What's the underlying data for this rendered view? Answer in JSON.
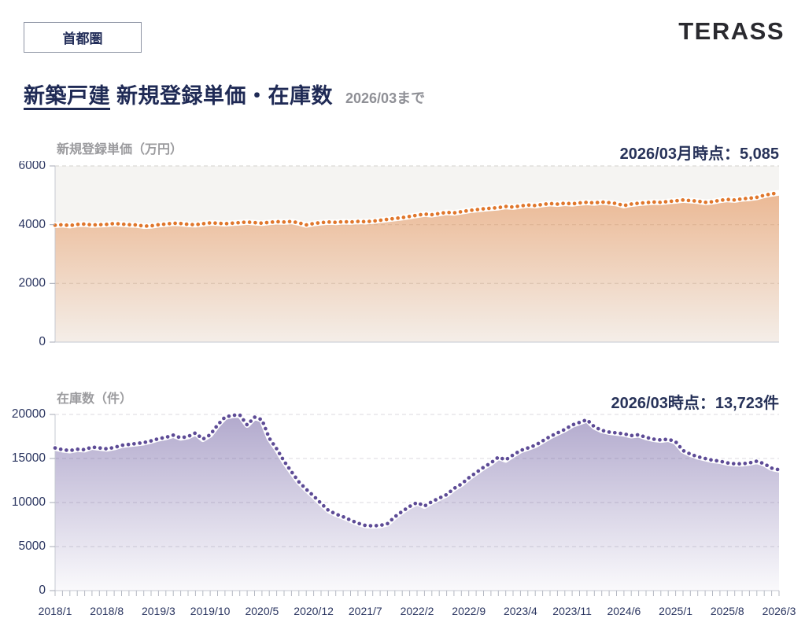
{
  "header": {
    "region_badge": "首都圏",
    "logo": "TERASS",
    "title_highlight": "新築戸建",
    "title_rest": " 新規登録単価・在庫数",
    "subtitle": "2026/03まで"
  },
  "colors": {
    "navy_text": "#273259",
    "gray_label": "#9b9b9e",
    "price_orange": "#e0762b",
    "inventory_purple": "#5d4b96"
  },
  "chart_data": [
    {
      "type": "area",
      "id": "price",
      "title": "新規登録単価（万円）",
      "annotation": "2026/03月時点：5,085",
      "latest": {
        "x": "2026/03",
        "y": 5085
      },
      "x_start": "2018/1",
      "x_end": "2026/3",
      "x_interval": "monthly",
      "x_tick_labels": [
        "2018/1",
        "2018/8",
        "2019/3",
        "2019/10",
        "2020/5",
        "2020/12",
        "2021/7",
        "2022/2",
        "2022/9",
        "2023/4",
        "2023/11",
        "2024/6",
        "2025/1",
        "2025/8",
        "2026/3"
      ],
      "ylim": [
        0,
        6000
      ],
      "y_ticks": [
        0,
        2000,
        4000,
        6000
      ],
      "grid": "dashed-horizontal",
      "legend": "none",
      "line_color": "#e0762b",
      "fill_color": "#e0762b",
      "fill_opacity_top": 0.55,
      "fill_opacity_bottom": 0.05,
      "plot_bg": "#f5f4f2",
      "grid_color": "#dcdad6",
      "values": [
        3980,
        4000,
        3970,
        4010,
        4020,
        3990,
        4000,
        4010,
        4040,
        4020,
        4000,
        3990,
        3950,
        3960,
        4000,
        4020,
        4050,
        4040,
        4010,
        4000,
        4030,
        4060,
        4050,
        4030,
        4050,
        4070,
        4090,
        4070,
        4050,
        4080,
        4100,
        4090,
        4110,
        4060,
        3990,
        4040,
        4070,
        4090,
        4080,
        4100,
        4090,
        4110,
        4100,
        4120,
        4150,
        4180,
        4210,
        4240,
        4280,
        4320,
        4360,
        4340,
        4380,
        4420,
        4400,
        4440,
        4480,
        4510,
        4540,
        4560,
        4580,
        4620,
        4600,
        4640,
        4670,
        4650,
        4690,
        4720,
        4700,
        4730,
        4710,
        4740,
        4760,
        4740,
        4770,
        4750,
        4720,
        4650,
        4700,
        4730,
        4750,
        4770,
        4760,
        4790,
        4810,
        4840,
        4820,
        4800,
        4760,
        4780,
        4830,
        4860,
        4840,
        4880,
        4900,
        4930,
        5000,
        5050,
        5085
      ]
    },
    {
      "type": "area",
      "id": "inventory",
      "title": "在庫数（件）",
      "annotation": "2026/03時点：13,723件",
      "latest": {
        "x": "2026/03",
        "y": 13723
      },
      "x_start": "2018/1",
      "x_end": "2026/3",
      "x_interval": "monthly",
      "x_tick_labels": [
        "2018/1",
        "2018/8",
        "2019/3",
        "2019/10",
        "2020/5",
        "2020/12",
        "2021/7",
        "2022/2",
        "2022/9",
        "2023/4",
        "2023/11",
        "2024/6",
        "2025/1",
        "2025/8",
        "2026/3"
      ],
      "ylim": [
        0,
        20000
      ],
      "y_ticks": [
        0,
        5000,
        10000,
        15000,
        20000
      ],
      "grid": "dashed-horizontal",
      "legend": "none",
      "line_color": "#5d4b96",
      "fill_color": "#5d4b96",
      "fill_opacity_top": 0.48,
      "fill_opacity_bottom": 0.03,
      "plot_bg": "#ffffff",
      "grid_color": "#e2e0e5",
      "values": [
        16200,
        16000,
        15900,
        16050,
        16000,
        16300,
        16200,
        16100,
        16250,
        16500,
        16600,
        16700,
        16800,
        17000,
        17250,
        17400,
        17650,
        17350,
        17500,
        17900,
        17200,
        17700,
        18800,
        19700,
        19900,
        19950,
        18800,
        19700,
        19400,
        17300,
        16100,
        14700,
        13500,
        12350,
        11500,
        10740,
        9900,
        9120,
        8700,
        8380,
        8000,
        7650,
        7400,
        7350,
        7400,
        7600,
        8380,
        9000,
        9560,
        10000,
        9600,
        10100,
        10500,
        10900,
        11600,
        12100,
        12800,
        13400,
        14000,
        14500,
        15150,
        14850,
        15400,
        15900,
        16200,
        16500,
        17000,
        17500,
        17900,
        18300,
        18800,
        19100,
        19400,
        18600,
        18200,
        18000,
        17900,
        17800,
        17600,
        17700,
        17400,
        17200,
        17100,
        17200,
        16900,
        15900,
        15500,
        15200,
        15000,
        14800,
        14700,
        14500,
        14400,
        14400,
        14500,
        14700,
        14400,
        13900,
        13723
      ]
    }
  ]
}
